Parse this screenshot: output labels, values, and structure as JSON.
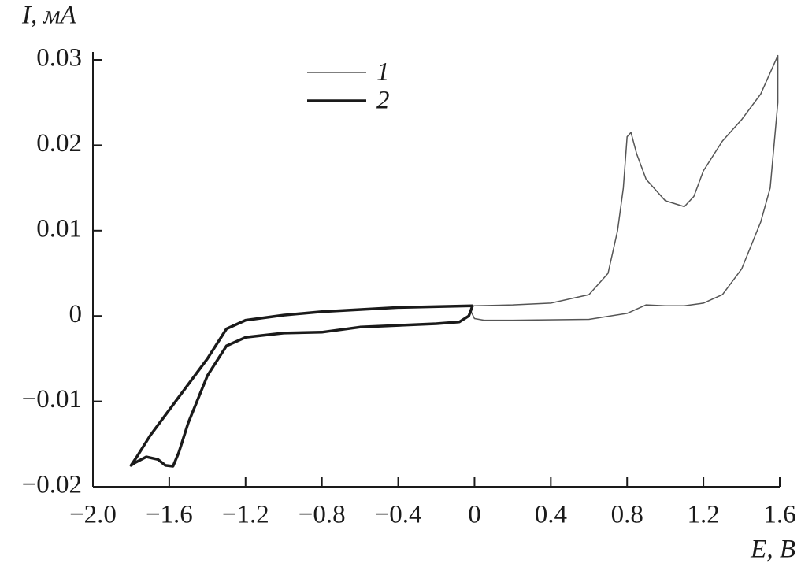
{
  "chart_data": {
    "type": "line",
    "xlabel": "E, В",
    "ylabel": "I, мА",
    "xlim": [
      -2.0,
      1.6
    ],
    "ylim": [
      -0.02,
      0.03
    ],
    "xticks": [
      {
        "value": -2.0,
        "label": "−2.0"
      },
      {
        "value": -1.6,
        "label": "−1.6"
      },
      {
        "value": -1.2,
        "label": "−1.2"
      },
      {
        "value": -0.8,
        "label": "−0.8"
      },
      {
        "value": -0.4,
        "label": "−0.4"
      },
      0,
      0.4,
      0.8,
      1.2,
      1.6
    ],
    "yticks": [
      {
        "value": -0.02,
        "label": "−0.02"
      },
      {
        "value": -0.01,
        "label": "−0.01"
      },
      0,
      0.01,
      0.02,
      0.03
    ],
    "legend": "top-left",
    "series": [
      {
        "name": "1",
        "color": "#555555",
        "x": [
          -0.02,
          0,
          0.2,
          0.4,
          0.6,
          0.7,
          0.75,
          0.78,
          0.8,
          0.82,
          0.85,
          0.9,
          1.0,
          1.1,
          1.15,
          1.2,
          1.3,
          1.4,
          1.5,
          1.59,
          1.59,
          1.55,
          1.5,
          1.4,
          1.3,
          1.2,
          1.1,
          1.0,
          0.9,
          0.8,
          0.6,
          0.2,
          0.05,
          0,
          -0.02
        ],
        "values": [
          0.0012,
          0.0012,
          0.0013,
          0.0015,
          0.0025,
          0.005,
          0.01,
          0.015,
          0.021,
          0.0215,
          0.019,
          0.016,
          0.0135,
          0.0128,
          0.014,
          0.017,
          0.0205,
          0.023,
          0.026,
          0.0305,
          0.025,
          0.015,
          0.011,
          0.0055,
          0.0025,
          0.0015,
          0.0012,
          0.0012,
          0.0013,
          0.0003,
          -0.0004,
          -0.0005,
          -0.0005,
          -0.0003,
          0.0006
        ]
      },
      {
        "name": "2",
        "color": "#1a1a1a",
        "x": [
          -0.01,
          -0.4,
          -0.8,
          -1.0,
          -1.2,
          -1.3,
          -1.4,
          -1.5,
          -1.6,
          -1.7,
          -1.77,
          -1.8,
          -1.78,
          -1.72,
          -1.66,
          -1.62,
          -1.58,
          -1.55,
          -1.5,
          -1.4,
          -1.3,
          -1.2,
          -1.0,
          -0.8,
          -0.6,
          -0.2,
          -0.08,
          -0.03,
          -0.01
        ],
        "values": [
          0.0012,
          0.001,
          0.0005,
          0.0001,
          -0.0005,
          -0.0015,
          -0.005,
          -0.008,
          -0.011,
          -0.014,
          -0.0165,
          -0.0175,
          -0.0172,
          -0.0165,
          -0.0168,
          -0.0175,
          -0.0176,
          -0.016,
          -0.0125,
          -0.007,
          -0.0035,
          -0.0025,
          -0.002,
          -0.0019,
          -0.0013,
          -0.0009,
          -0.0007,
          0.0,
          0.0012
        ]
      }
    ]
  }
}
